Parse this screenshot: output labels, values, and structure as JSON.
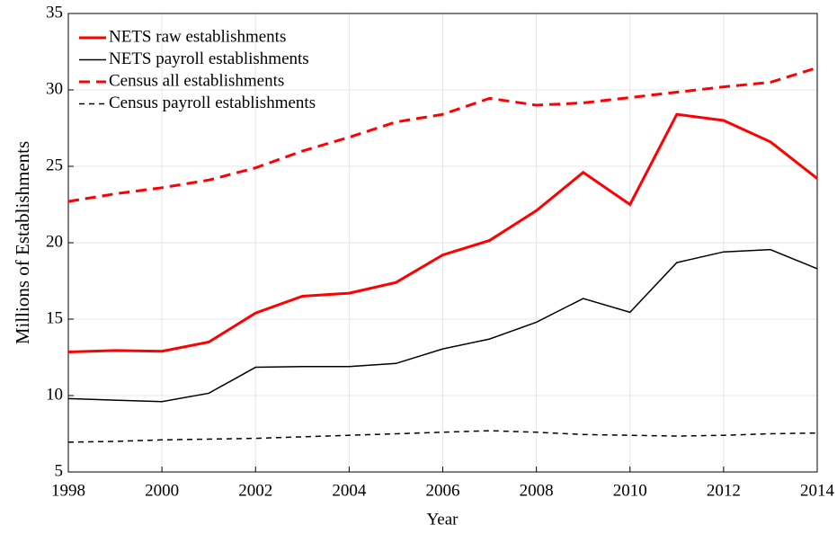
{
  "chart_data": {
    "type": "line",
    "xlabel": "Year",
    "ylabel": "Millions of Establishments",
    "x": [
      1998,
      1999,
      2000,
      2001,
      2002,
      2003,
      2004,
      2005,
      2006,
      2007,
      2008,
      2009,
      2010,
      2011,
      2012,
      2013,
      2014
    ],
    "series": [
      {
        "name": "NETS raw establishments",
        "color": "#ff0000",
        "style": "solid",
        "values": [
          12.85,
          12.95,
          12.9,
          13.5,
          15.4,
          16.5,
          16.7,
          17.4,
          19.2,
          20.15,
          22.1,
          24.6,
          22.5,
          28.4,
          28.0,
          26.6,
          24.2
        ]
      },
      {
        "name": "NETS payroll establishments",
        "color": "#000000",
        "style": "solid",
        "values": [
          9.8,
          9.7,
          9.6,
          10.15,
          11.85,
          11.9,
          11.9,
          12.1,
          13.05,
          13.7,
          14.8,
          16.35,
          15.45,
          18.7,
          19.4,
          19.55,
          18.3
        ]
      },
      {
        "name": "Census all establishments",
        "color": "#ff0000",
        "style": "dashed",
        "values": [
          22.7,
          23.2,
          23.6,
          24.1,
          24.9,
          26.0,
          26.9,
          27.9,
          28.4,
          29.45,
          29.0,
          29.15,
          29.5,
          29.85,
          30.2,
          30.5,
          31.45
        ]
      },
      {
        "name": "Census payroll establishments",
        "color": "#000000",
        "style": "dashed",
        "values": [
          6.95,
          7.0,
          7.1,
          7.15,
          7.2,
          7.3,
          7.4,
          7.5,
          7.6,
          7.7,
          7.6,
          7.45,
          7.4,
          7.35,
          7.4,
          7.5,
          7.55
        ]
      }
    ],
    "xlim": [
      1998,
      2014
    ],
    "xticks": [
      1998,
      2000,
      2002,
      2004,
      2006,
      2008,
      2010,
      2012,
      2014
    ],
    "ylim": [
      5,
      35
    ],
    "yticks": [
      5,
      10,
      15,
      20,
      25,
      30,
      35
    ],
    "grid": true,
    "legend": "upper left"
  }
}
